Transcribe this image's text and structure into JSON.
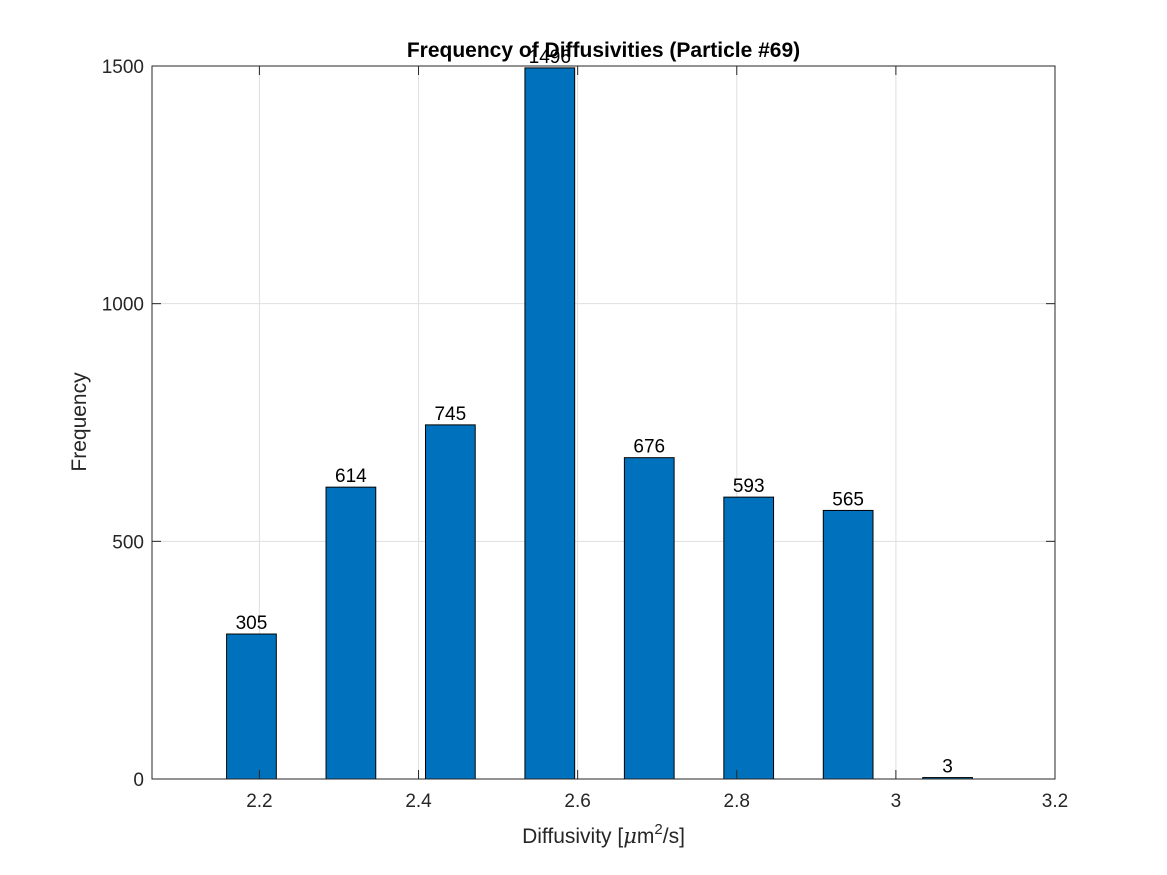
{
  "chart_data": {
    "type": "bar",
    "title": "Frequency of Diffusivities (Particle #69)",
    "xlabel_prefix": "Diffusivity [",
    "xlabel_mu": "μ",
    "xlabel_m": "m",
    "xlabel_sup": "2",
    "xlabel_suffix": "/s]",
    "ylabel": "Frequency",
    "x": [
      2.19,
      2.315,
      2.44,
      2.565,
      2.69,
      2.815,
      2.94,
      3.065
    ],
    "values": [
      305,
      614,
      745,
      1496,
      676,
      593,
      565,
      3
    ],
    "data_labels": [
      "305",
      "614",
      "745",
      "1496",
      "676",
      "593",
      "565",
      "3"
    ],
    "bar_width": 0.0625,
    "xlim": [
      2.065,
      3.2
    ],
    "ylim": [
      0,
      1500
    ],
    "xticks": [
      2.2,
      2.4,
      2.6,
      2.8,
      3,
      3.2
    ],
    "xtick_labels": [
      "2.2",
      "2.4",
      "2.6",
      "2.8",
      "3",
      "3.2"
    ],
    "yticks": [
      0,
      500,
      1000,
      1500
    ],
    "ytick_labels": [
      "0",
      "500",
      "1000",
      "1500"
    ],
    "grid": true,
    "bar_color": "#0072BD",
    "edge_color": "#000000"
  }
}
